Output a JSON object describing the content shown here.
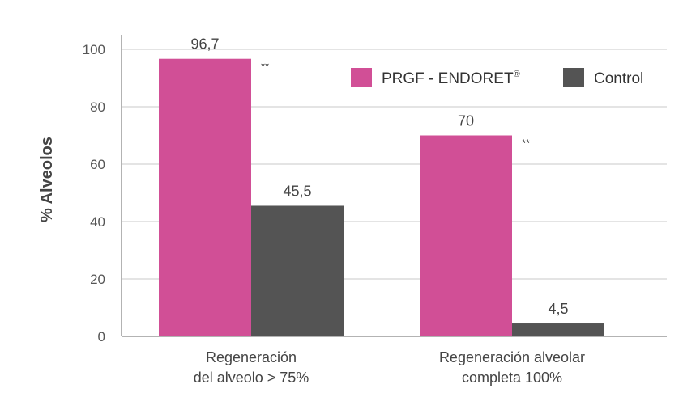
{
  "chart_data": {
    "type": "bar",
    "ylabel": "% Alveolos",
    "ylim": [
      0,
      100
    ],
    "yticks": [
      "0",
      "20",
      "40",
      "60",
      "80",
      "100"
    ],
    "grid": true,
    "legend_position": "top-right",
    "categories": [
      [
        "Regeneración",
        "del alveolo > 75%"
      ],
      [
        "Regeneración alveolar",
        "completa 100%"
      ]
    ],
    "series": [
      {
        "name": "PRGF - ENDORET",
        "name_mark": "®",
        "color": "#d14f96",
        "values": [
          96.7,
          70
        ],
        "labels": [
          "96,7",
          "70"
        ],
        "significance": [
          "**",
          "**"
        ]
      },
      {
        "name": "Control",
        "color": "#545454",
        "values": [
          45.5,
          4.5
        ],
        "labels": [
          "45,5",
          "4,5"
        ],
        "significance": [
          "",
          ""
        ]
      }
    ]
  }
}
